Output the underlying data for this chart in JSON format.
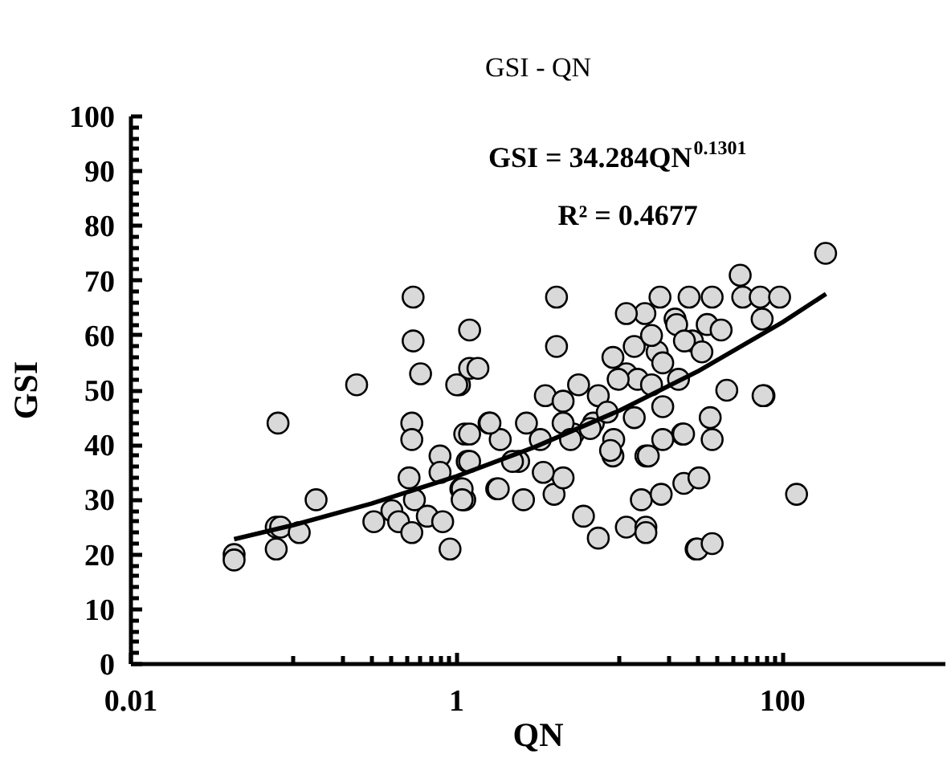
{
  "chart_data": {
    "type": "scatter",
    "title": "GSI - QN",
    "xlabel": "QN",
    "ylabel": "GSI",
    "annotations": [
      "GSI = 34.284QN$^{0.1301}$",
      "R² = 0.4677"
    ],
    "log": "x",
    "xlim": [
      0.01,
      1000
    ],
    "xticks": [
      0.01,
      1,
      100
    ],
    "ylim": [
      0,
      100
    ],
    "yticks": [
      0,
      10,
      20,
      30,
      40,
      50,
      60,
      70,
      80,
      90,
      100
    ],
    "grid": false,
    "marker": "circle",
    "series": [
      {
        "type": "scatter",
        "color": "#d9d9d9",
        "x": [
          0.54,
          0.54,
          0.6,
          0.243,
          1.04,
          1.2,
          1.2,
          0.08,
          0.043,
          0.043,
          0.078,
          0.083,
          0.078,
          0.108,
          0.137,
          0.31,
          0.4,
          0.44,
          0.53,
          0.53,
          0.53,
          0.51,
          0.55,
          0.66,
          0.79,
          0.79,
          0.82,
          0.91,
          1.06,
          1.12,
          1.12,
          184,
          4.1,
          4.1,
          1.35,
          1.0,
          55,
          57,
          73,
          96,
          75,
          17.7,
          26.7,
          37,
          14.3,
          11,
          21.9,
          34.5,
          42,
          28,
          45.5,
          77,
          3.5,
          23,
          1.2,
          1.58,
          2.68,
          1.85,
          1.16,
          1.08,
          1.76,
          2.57,
          3.96,
          4.5,
          3.4,
          2.4,
          6.0,
          7.4,
          11,
          14.5,
          14.5,
          13.6,
          18,
          24.8,
          30.7,
          29.5,
          5.6,
          7.4,
          11,
          12.9,
          17,
          22.4,
          18.4,
          24.3,
          18.4,
          14.5,
          9.1,
          9.2,
          5.2,
          6.9,
          4.5,
          122,
          30,
          37,
          36,
          37,
          24.7,
          76,
          15,
          8.8,
          1.6,
          3.26,
          5,
          6.6,
          2.2,
          1.2,
          1.8,
          1.08,
          9.1,
          12.3,
          15.7,
          18.4,
          25,
          32,
          9.8,
          15.7,
          4.5,
          8.4,
          12.3
        ],
        "values": [
          67,
          59,
          53,
          51,
          51,
          61,
          54,
          44,
          20,
          19,
          25,
          25,
          21,
          24,
          30,
          26,
          28,
          26,
          24,
          44,
          41,
          34,
          30,
          27,
          38,
          35,
          26,
          21,
          32,
          30,
          42,
          75,
          67,
          58,
          54,
          51,
          71,
          67,
          67,
          67,
          63,
          67,
          67,
          67,
          64,
          64,
          63,
          62,
          61,
          59,
          50,
          49,
          49,
          52,
          42,
          44,
          44,
          41,
          37,
          32,
          32,
          30,
          31,
          34,
          35,
          37,
          27,
          23,
          25,
          25,
          24,
          30,
          31,
          33,
          34,
          21,
          51,
          49,
          53,
          52,
          57,
          62,
          47,
          42,
          41,
          38,
          38,
          41,
          42,
          44,
          44,
          31,
          21,
          22,
          45,
          41,
          42,
          49,
          38,
          39,
          44,
          41,
          41,
          43,
          37,
          37,
          32,
          30,
          56,
          58,
          60,
          55,
          59,
          57,
          52,
          51,
          48,
          46,
          45
        ]
      },
      {
        "type": "line",
        "marker": "none",
        "color": "#000000",
        "x": [
          0.043,
          0.1,
          0.3,
          1,
          3,
          10,
          30,
          100,
          185
        ],
        "values": [
          22.8,
          25.4,
          29.3,
          34.3,
          39.6,
          46.3,
          53.4,
          62.4,
          67.6
        ]
      }
    ]
  }
}
